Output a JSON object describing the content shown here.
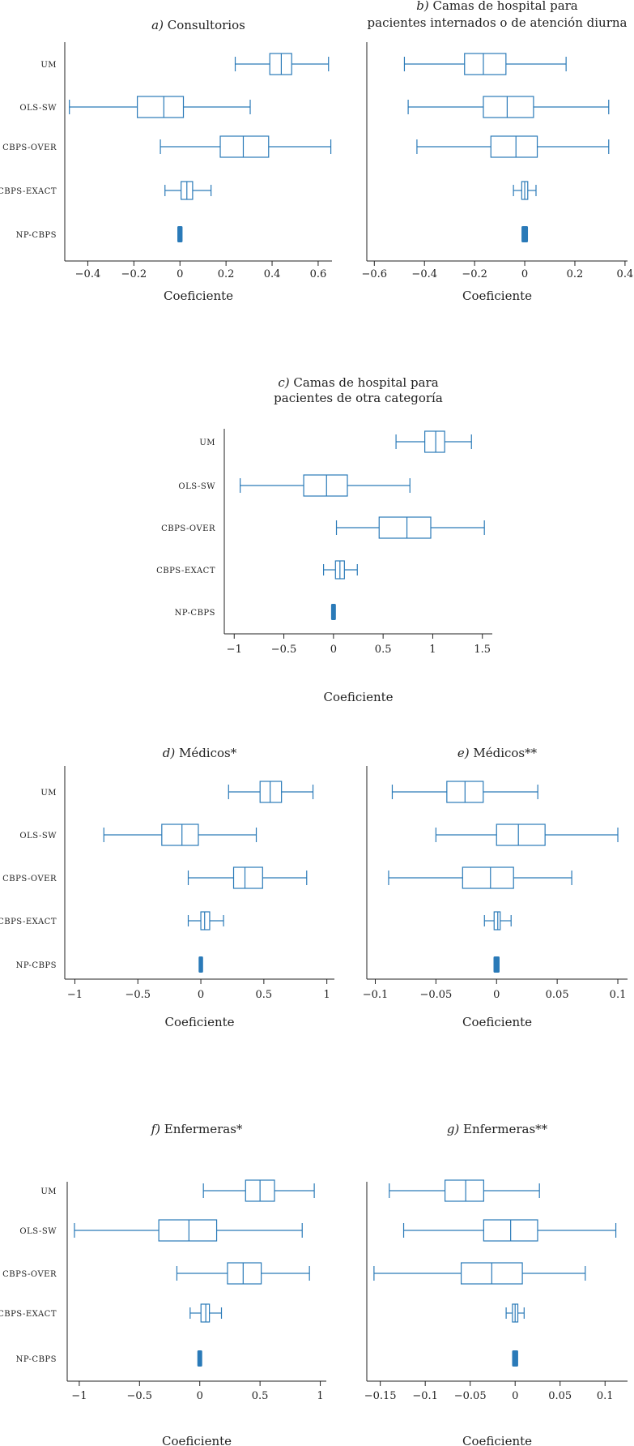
{
  "figure_colors": {
    "box": "#2a7ab8",
    "axis": "#222222",
    "text": "#222222"
  },
  "chart_data": [
    {
      "type": "boxplot",
      "panel": "a",
      "title_prefix": "a)",
      "title_lines": [
        "Consultorios"
      ],
      "xlabel": "Coeficiente",
      "categories": [
        "UM",
        "OLS-SW",
        "CBPS-OVER",
        "CBPS-EXACT",
        "NP-CBPS"
      ],
      "xlim": [
        -0.5,
        0.66
      ],
      "xticks": [
        -0.4,
        -0.2,
        0,
        0.2,
        0.4,
        0.6
      ],
      "xtick_labels": [
        "−0.4",
        "−0.2",
        "0",
        "0.2",
        "0.4",
        "0.6"
      ],
      "series": [
        {
          "name": "UM",
          "whisker_low": 0.24,
          "q1": 0.39,
          "median": 0.44,
          "q3": 0.485,
          "whisker_high": 0.645
        },
        {
          "name": "OLS-SW",
          "whisker_low": -0.48,
          "q1": -0.185,
          "median": -0.07,
          "q3": 0.015,
          "whisker_high": 0.305
        },
        {
          "name": "CBPS-OVER",
          "whisker_low": -0.085,
          "q1": 0.175,
          "median": 0.275,
          "q3": 0.385,
          "whisker_high": 0.655
        },
        {
          "name": "CBPS-EXACT",
          "whisker_low": -0.065,
          "q1": 0.005,
          "median": 0.03,
          "q3": 0.055,
          "whisker_high": 0.135
        },
        {
          "name": "NP-CBPS",
          "whisker_low": -0.006,
          "q1": -0.004,
          "median": 0.0,
          "q3": 0.004,
          "whisker_high": 0.006
        }
      ]
    },
    {
      "type": "boxplot",
      "panel": "b",
      "title_prefix": "b)",
      "title_lines": [
        "Camas de hospital para",
        "pacientes internados o de atención diurna"
      ],
      "xlabel": "Coeficiente",
      "categories": [
        "UM",
        "OLS-SW",
        "CBPS-OVER",
        "CBPS-EXACT",
        "NP-CBPS"
      ],
      "xlim": [
        -0.63,
        0.41
      ],
      "xticks": [
        -0.6,
        -0.4,
        -0.2,
        0,
        0.2,
        0.4
      ],
      "xtick_labels": [
        "−0.6",
        "−0.4",
        "−0.2",
        "0",
        "0.2",
        "0.4"
      ],
      "series": [
        {
          "name": "UM",
          "whisker_low": -0.48,
          "q1": -0.24,
          "median": -0.165,
          "q3": -0.075,
          "whisker_high": 0.165
        },
        {
          "name": "OLS-SW",
          "whisker_low": -0.465,
          "q1": -0.165,
          "median": -0.07,
          "q3": 0.035,
          "whisker_high": 0.335
        },
        {
          "name": "CBPS-OVER",
          "whisker_low": -0.43,
          "q1": -0.135,
          "median": -0.035,
          "q3": 0.05,
          "whisker_high": 0.335
        },
        {
          "name": "CBPS-EXACT",
          "whisker_low": -0.045,
          "q1": -0.012,
          "median": 0.0,
          "q3": 0.012,
          "whisker_high": 0.045
        },
        {
          "name": "NP-CBPS",
          "whisker_low": -0.008,
          "q1": -0.005,
          "median": 0.0,
          "q3": 0.005,
          "whisker_high": 0.008
        }
      ]
    },
    {
      "type": "boxplot",
      "panel": "c",
      "title_prefix": "c)",
      "title_lines": [
        "Camas de hospital para",
        "pacientes de otra categoría"
      ],
      "xlabel": "Coeficiente",
      "categories": [
        "UM",
        "OLS-SW",
        "CBPS-OVER",
        "CBPS-EXACT",
        "NP-CBPS"
      ],
      "xlim": [
        -1.1,
        1.6
      ],
      "xticks": [
        -1,
        -0.5,
        0,
        0.5,
        1,
        1.5
      ],
      "xtick_labels": [
        "−1",
        "−0.5",
        "0",
        "0.5",
        "1",
        "1.5"
      ],
      "series": [
        {
          "name": "UM",
          "whisker_low": 0.63,
          "q1": 0.92,
          "median": 1.03,
          "q3": 1.12,
          "whisker_high": 1.39
        },
        {
          "name": "OLS-SW",
          "whisker_low": -0.94,
          "q1": -0.3,
          "median": -0.07,
          "q3": 0.14,
          "whisker_high": 0.77
        },
        {
          "name": "CBPS-OVER",
          "whisker_low": 0.03,
          "q1": 0.46,
          "median": 0.74,
          "q3": 0.98,
          "whisker_high": 1.52
        },
        {
          "name": "CBPS-EXACT",
          "whisker_low": -0.1,
          "q1": 0.02,
          "median": 0.065,
          "q3": 0.11,
          "whisker_high": 0.24
        },
        {
          "name": "NP-CBPS",
          "whisker_low": -0.012,
          "q1": -0.008,
          "median": 0.0,
          "q3": 0.008,
          "whisker_high": 0.012
        }
      ]
    },
    {
      "type": "boxplot",
      "panel": "d",
      "title_prefix": "d)",
      "title_lines": [
        "Médicos*"
      ],
      "xlabel": "Coeficiente",
      "categories": [
        "UM",
        "OLS-SW",
        "CBPS-OVER",
        "CBPS-EXACT",
        "NP-CBPS"
      ],
      "xlim": [
        -1.08,
        1.06
      ],
      "xticks": [
        -1,
        -0.5,
        0,
        0.5,
        1
      ],
      "xtick_labels": [
        "−1",
        "−0.5",
        "0",
        "0.5",
        "1"
      ],
      "series": [
        {
          "name": "UM",
          "whisker_low": 0.22,
          "q1": 0.47,
          "median": 0.55,
          "q3": 0.64,
          "whisker_high": 0.89
        },
        {
          "name": "OLS-SW",
          "whisker_low": -0.77,
          "q1": -0.31,
          "median": -0.15,
          "q3": -0.02,
          "whisker_high": 0.44
        },
        {
          "name": "CBPS-OVER",
          "whisker_low": -0.1,
          "q1": 0.26,
          "median": 0.35,
          "q3": 0.49,
          "whisker_high": 0.84
        },
        {
          "name": "CBPS-EXACT",
          "whisker_low": -0.1,
          "q1": 0.0,
          "median": 0.03,
          "q3": 0.07,
          "whisker_high": 0.18
        },
        {
          "name": "NP-CBPS",
          "whisker_low": -0.008,
          "q1": -0.005,
          "median": 0.0,
          "q3": 0.005,
          "whisker_high": 0.008
        }
      ]
    },
    {
      "type": "boxplot",
      "panel": "e",
      "title_prefix": "e)",
      "title_lines": [
        "Médicos**"
      ],
      "xlabel": "Coeficiente",
      "categories": [
        "UM",
        "OLS-SW",
        "CBPS-OVER",
        "CBPS-EXACT",
        "NP-CBPS"
      ],
      "xlim": [
        -0.107,
        0.108
      ],
      "xticks": [
        -0.1,
        -0.05,
        0,
        0.05,
        0.1
      ],
      "xtick_labels": [
        "−0.1",
        "−0.05",
        "0",
        "0.05",
        "0.1"
      ],
      "series": [
        {
          "name": "UM",
          "whisker_low": -0.086,
          "q1": -0.041,
          "median": -0.026,
          "q3": -0.011,
          "whisker_high": 0.034
        },
        {
          "name": "OLS-SW",
          "whisker_low": -0.05,
          "q1": 0.0,
          "median": 0.018,
          "q3": 0.04,
          "whisker_high": 0.1
        },
        {
          "name": "CBPS-OVER",
          "whisker_low": -0.089,
          "q1": -0.028,
          "median": -0.005,
          "q3": 0.014,
          "whisker_high": 0.062
        },
        {
          "name": "CBPS-EXACT",
          "whisker_low": -0.01,
          "q1": -0.002,
          "median": 0.001,
          "q3": 0.003,
          "whisker_high": 0.012
        },
        {
          "name": "NP-CBPS",
          "whisker_low": -0.0015,
          "q1": -0.0008,
          "median": 0.0,
          "q3": 0.0008,
          "whisker_high": 0.0015
        }
      ]
    },
    {
      "type": "boxplot",
      "panel": "f",
      "title_prefix": "f)",
      "title_lines": [
        "Enfermeras*"
      ],
      "xlabel": "Coeficiente",
      "categories": [
        "UM",
        "OLS-SW",
        "CBPS-OVER",
        "CBPS-EXACT",
        "NP-CBPS"
      ],
      "xlim": [
        -1.1,
        1.05
      ],
      "xticks": [
        -1,
        -0.5,
        0,
        0.5,
        1
      ],
      "xtick_labels": [
        "−1",
        "−0.5",
        "0",
        "0.5",
        "1"
      ],
      "series": [
        {
          "name": "UM",
          "whisker_low": 0.03,
          "q1": 0.38,
          "median": 0.5,
          "q3": 0.62,
          "whisker_high": 0.95
        },
        {
          "name": "OLS-SW",
          "whisker_low": -1.04,
          "q1": -0.34,
          "median": -0.09,
          "q3": 0.14,
          "whisker_high": 0.85
        },
        {
          "name": "CBPS-OVER",
          "whisker_low": -0.19,
          "q1": 0.23,
          "median": 0.36,
          "q3": 0.51,
          "whisker_high": 0.91
        },
        {
          "name": "CBPS-EXACT",
          "whisker_low": -0.08,
          "q1": 0.01,
          "median": 0.05,
          "q3": 0.08,
          "whisker_high": 0.18
        },
        {
          "name": "NP-CBPS",
          "whisker_low": -0.01,
          "q1": -0.006,
          "median": 0.0,
          "q3": 0.006,
          "whisker_high": 0.01
        }
      ]
    },
    {
      "type": "boxplot",
      "panel": "g",
      "title_prefix": "g)",
      "title_lines": [
        "Enfermeras**"
      ],
      "xlabel": "Coeficiente",
      "categories": [
        "UM",
        "OLS-SW",
        "CBPS-OVER",
        "CBPS-EXACT",
        "NP-CBPS"
      ],
      "xlim": [
        -0.165,
        0.125
      ],
      "xticks": [
        -0.15,
        -0.1,
        -0.05,
        0,
        0.05,
        0.1
      ],
      "xtick_labels": [
        "−0.15",
        "−0.1",
        "−0.05",
        "0",
        "0.05",
        "0.1"
      ],
      "series": [
        {
          "name": "UM",
          "whisker_low": -0.14,
          "q1": -0.078,
          "median": -0.055,
          "q3": -0.035,
          "whisker_high": 0.027
        },
        {
          "name": "OLS-SW",
          "whisker_low": -0.124,
          "q1": -0.035,
          "median": -0.005,
          "q3": 0.025,
          "whisker_high": 0.112
        },
        {
          "name": "CBPS-OVER",
          "whisker_low": -0.157,
          "q1": -0.06,
          "median": -0.026,
          "q3": 0.008,
          "whisker_high": 0.078
        },
        {
          "name": "CBPS-EXACT",
          "whisker_low": -0.01,
          "q1": -0.003,
          "median": 0.0,
          "q3": 0.003,
          "whisker_high": 0.01
        },
        {
          "name": "NP-CBPS",
          "whisker_low": -0.002,
          "q1": -0.001,
          "median": 0.0,
          "q3": 0.001,
          "whisker_high": 0.002
        }
      ]
    }
  ]
}
